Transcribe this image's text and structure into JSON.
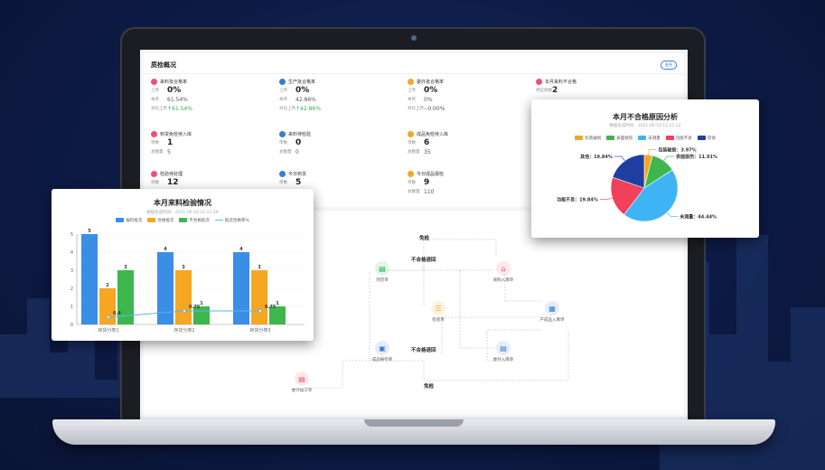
{
  "dashboard": {
    "title": "质检概况",
    "more_label": "更多",
    "stats": [
      {
        "icon": "clipboard-icon",
        "color": "#f0506e",
        "title": "来料批合格率",
        "rows": [
          {
            "label": "上月",
            "value": "0%",
            "big": true
          },
          {
            "label": "本月",
            "value": "61.54%"
          },
          {
            "label": "对比上月",
            "value": "↑61.54%",
            "up": true
          }
        ]
      },
      {
        "icon": "clipboard-icon",
        "color": "#3a7bd5",
        "title": "生产批合格率",
        "rows": [
          {
            "label": "上月",
            "value": "0%",
            "big": true
          },
          {
            "label": "本月",
            "value": "42.86%"
          },
          {
            "label": "对比上月",
            "value": "↑42.86%",
            "up": true
          }
        ]
      },
      {
        "icon": "clipboard-icon",
        "color": "#f5a623",
        "title": "委外批合格率",
        "rows": [
          {
            "label": "上月",
            "value": "0%",
            "big": true
          },
          {
            "label": "本月",
            "value": "0%"
          },
          {
            "label": "对比上月",
            "value": "--0.00%"
          }
        ]
      },
      {
        "icon": "clipboard-icon",
        "color": "#f0506e",
        "title": "本月来料不合格",
        "rows": [
          {
            "label": "供应商数",
            "value": "2",
            "big": true
          }
        ]
      },
      {
        "icon": "clipboard-icon",
        "color": "#f0506e",
        "title": "到货免检待入库",
        "rows": [
          {
            "label": "单数",
            "value": "1",
            "big": true
          },
          {
            "label": "总数量",
            "value": "5"
          }
        ]
      },
      {
        "icon": "clipboard-icon",
        "color": "#3a7bd5",
        "title": "来料待检验",
        "rows": [
          {
            "label": "单数",
            "value": "0",
            "big": true
          },
          {
            "label": "总数量",
            "value": "0"
          }
        ]
      },
      {
        "icon": "clipboard-icon",
        "color": "#f5a623",
        "title": "成品免检待入库",
        "rows": [
          {
            "label": "单数",
            "value": "6",
            "big": true
          },
          {
            "label": "总数量",
            "value": "35"
          }
        ]
      },
      {
        "icon": "clipboard-icon",
        "color": "#f0506e",
        "title": "检验待处理",
        "rows": [
          {
            "label": "单数",
            "value": "12",
            "big": true
          },
          {
            "label": "总数量",
            "value": ""
          }
        ]
      },
      {
        "icon": "clipboard-icon",
        "color": "#3a7bd5",
        "title": "今日到货",
        "rows": [
          {
            "label": "单数",
            "value": "5",
            "big": true
          },
          {
            "label": "总数量",
            "value": "1,210"
          }
        ]
      },
      {
        "icon": "clipboard-icon",
        "color": "#f5a623",
        "title": "今日成品报检",
        "rows": [
          {
            "label": "单数",
            "value": "9",
            "big": true
          },
          {
            "label": "总数量",
            "value": "110"
          }
        ]
      }
    ]
  },
  "flow": {
    "nodes": [
      {
        "id": "daohuo",
        "label": "到货单",
        "icon": "document-icon",
        "color": "#27b14a"
      },
      {
        "id": "caigou",
        "label": "采购入库单",
        "icon": "warehouse-icon",
        "color": "#f0506e"
      },
      {
        "id": "jianyan",
        "label": "检验单",
        "icon": "checklist-icon",
        "color": "#f5a623"
      },
      {
        "id": "chanchengpin",
        "label": "产成品入库单",
        "icon": "boxes-icon",
        "color": "#3a7bd5"
      },
      {
        "id": "chengpin",
        "label": "成品报检单",
        "icon": "report-icon",
        "color": "#3a7bd5"
      },
      {
        "id": "weiwai",
        "label": "委外入库单",
        "icon": "inbox-icon",
        "color": "#3a7bd5"
      },
      {
        "id": "jiagong",
        "label": "委外加工单",
        "icon": "order-icon",
        "color": "#f0506e"
      }
    ],
    "edge_labels": {
      "top_free": "免检",
      "reject_top": "不合格退回",
      "reject_bottom": "不合格退回",
      "bottom_free": "免检"
    }
  },
  "bar_card": {
    "title": "本月来料检验情况",
    "subtitle": "数据生成时间：2021-06-18 11:21:29",
    "legend": [
      "报检批次",
      "合格批次",
      "不合格批次",
      "批次合格率%"
    ]
  },
  "pie_card": {
    "title": "本月不合格原因分析",
    "subtitle": "数据生成时间：2021-06-18 11:21:22",
    "legend": [
      "包装破损",
      "表面损伤",
      "未测量",
      "功能不良",
      "其他"
    ]
  },
  "chart_data": [
    {
      "type": "bar",
      "title": "本月来料检验情况",
      "categories": [
        "存货分类1",
        "存货分类2",
        "存货分类3"
      ],
      "series": [
        {
          "name": "报检批次",
          "values": [
            5,
            4,
            4
          ],
          "color": "#3a8ee6"
        },
        {
          "name": "合格批次",
          "values": [
            2,
            3,
            3
          ],
          "color": "#f5a623"
        },
        {
          "name": "不合格批次",
          "values": [
            3,
            1,
            1
          ],
          "color": "#3db74d"
        },
        {
          "name": "批次合格率%",
          "values": [
            0.4,
            0.75,
            0.75
          ],
          "color": "#5ab4f0",
          "kind": "line"
        }
      ],
      "ylim": [
        0,
        5
      ]
    },
    {
      "type": "pie",
      "title": "本月不合格原因分析",
      "slices": [
        {
          "label": "包装破损",
          "value": 3.97,
          "color": "#f5a623"
        },
        {
          "label": "表面损伤",
          "value": 11.91,
          "color": "#3db74d"
        },
        {
          "label": "未测量",
          "value": 44.44,
          "color": "#3fb4f5"
        },
        {
          "label": "功能不良",
          "value": 19.84,
          "color": "#f0405c"
        },
        {
          "label": "其他",
          "value": 19.84,
          "color": "#1f3fa0"
        }
      ],
      "data_labels": [
        "包装破损：3.97%",
        "表面损伤：11.91%",
        "未测量：44.44%",
        "功能不良：19.84%",
        "其他：19.84%"
      ]
    }
  ]
}
